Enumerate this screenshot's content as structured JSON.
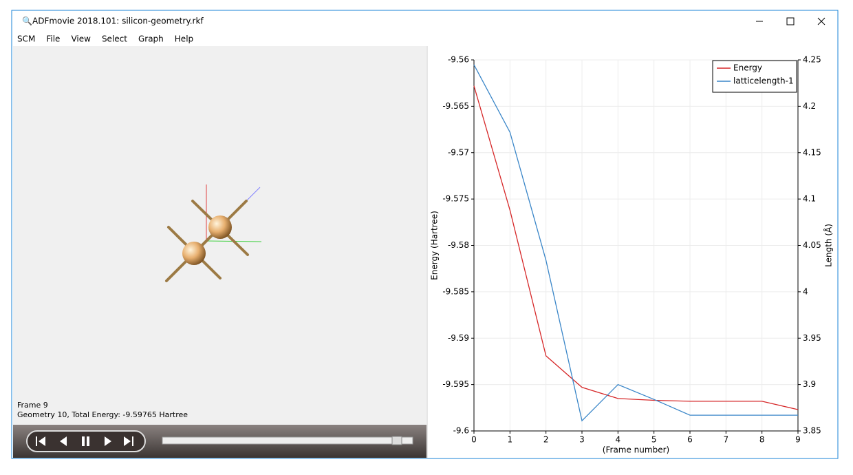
{
  "window": {
    "title": "ADFmovie 2018.101: silicon-geometry.rkf"
  },
  "menu": [
    "SCM",
    "File",
    "View",
    "Select",
    "Graph",
    "Help"
  ],
  "viewer": {
    "frame_text": "Frame 9",
    "geometry_text": "Geometry 10, Total Energy: -9.59765 Hartree"
  },
  "chart_data": {
    "type": "line",
    "x_label": "(Frame number)",
    "y_label": "Energy (Hartree)",
    "y2_label": "Length (Å)",
    "x": [
      0,
      1,
      2,
      3,
      4,
      5,
      6,
      7,
      8,
      9
    ],
    "series": [
      {
        "name": "Energy",
        "color": "#d62728",
        "values": [
          -9.5628,
          -9.5762,
          -9.5919,
          -9.5953,
          -9.5965,
          -9.5967,
          -9.5968,
          -9.5968,
          -9.5968,
          -9.5977
        ]
      },
      {
        "name": "latticelength-1",
        "color": "#3a86c8",
        "axis": "y2",
        "values": [
          4.2448,
          4.172,
          4.034,
          3.861,
          3.9,
          3.884,
          3.867,
          3.867,
          3.867,
          3.867
        ]
      }
    ],
    "xlim": [
      0,
      9
    ],
    "xticks": [
      0,
      1,
      2,
      3,
      4,
      5,
      6,
      7,
      8,
      9
    ],
    "ylim": [
      -9.6,
      -9.56
    ],
    "yticks": [
      -9.6,
      -9.595,
      -9.59,
      -9.585,
      -9.58,
      -9.575,
      -9.57,
      -9.565,
      -9.56
    ],
    "y2lim": [
      3.85,
      4.25
    ],
    "y2ticks": [
      3.85,
      3.9,
      3.95,
      4,
      4.05,
      4.1,
      4.15,
      4.2,
      4.25
    ],
    "grid": true,
    "legend": "top-right"
  }
}
